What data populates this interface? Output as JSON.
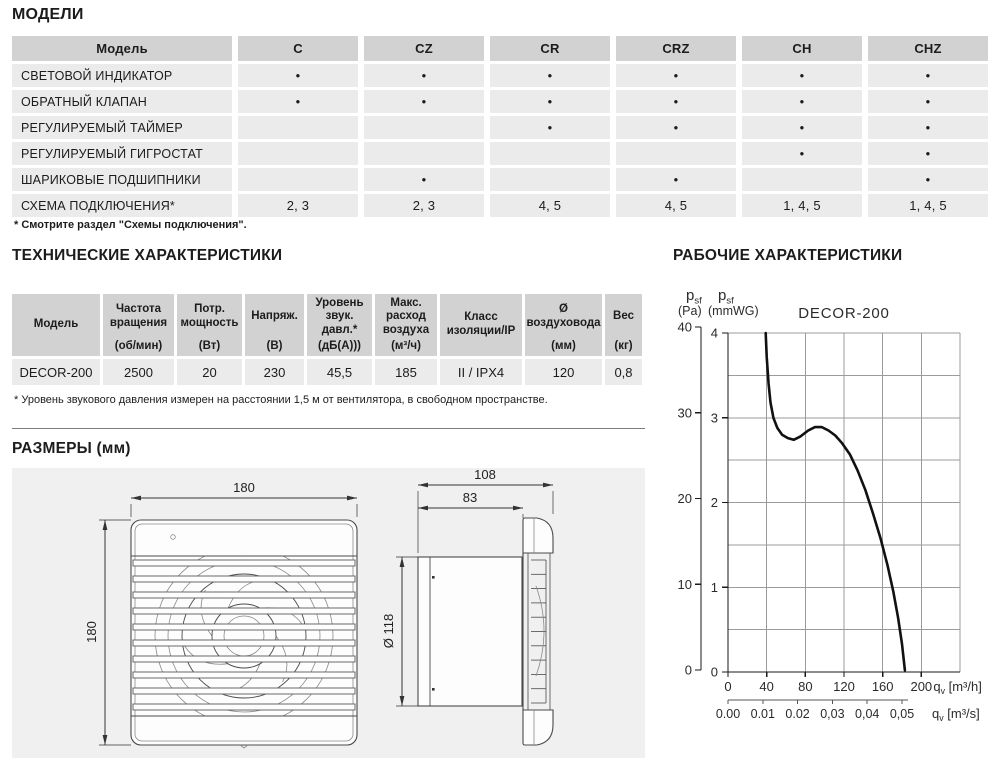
{
  "titles": {
    "models": "МОДЕЛИ",
    "tech": "ТЕХНИЧЕСКИЕ ХАРАКТЕРИСТИКИ",
    "performance": "РАБОЧИЕ ХАРАКТЕРИСТИКИ",
    "dimensions": "РАЗМЕРЫ (мм)"
  },
  "models_table": {
    "header": [
      "Модель",
      "C",
      "CZ",
      "CR",
      "CRZ",
      "CH",
      "CHZ"
    ],
    "rows": [
      {
        "label": "СВЕТОВОЙ ИНДИКАТОР",
        "values": [
          "●",
          "●",
          "●",
          "●",
          "●",
          "●"
        ]
      },
      {
        "label": "ОБРАТНЫЙ КЛАПАН",
        "values": [
          "●",
          "●",
          "●",
          "●",
          "●",
          "●"
        ]
      },
      {
        "label": "РЕГУЛИРУЕМЫЙ ТАЙМЕР",
        "values": [
          "",
          "",
          "●",
          "●",
          "●",
          "●"
        ]
      },
      {
        "label": "РЕГУЛИРУЕМЫЙ ГИГРОСТАТ",
        "values": [
          "",
          "",
          "",
          "",
          "●",
          "●"
        ]
      },
      {
        "label": "ШАРИКОВЫЕ ПОДШИПНИКИ",
        "values": [
          "",
          "●",
          "",
          "●",
          "",
          "●"
        ]
      },
      {
        "label": "СХЕМА ПОДКЛЮЧЕНИЯ*",
        "values": [
          "2, 3",
          "2, 3",
          "4, 5",
          "4, 5",
          "1, 4, 5",
          "1, 4, 5"
        ]
      }
    ]
  },
  "models_footnote": "* Смотрите раздел \"Схемы подключения\".",
  "tech_table": {
    "headers": [
      {
        "top": "Модель",
        "unit": ""
      },
      {
        "top": "Частота вращения",
        "unit": "(об/мин)"
      },
      {
        "top": "Потр. мощность",
        "unit": "(Вт)"
      },
      {
        "top": "Напряж.",
        "unit": "(В)"
      },
      {
        "top": "Уровень звук. давл.*",
        "unit": "(дБ(А)))"
      },
      {
        "top": "Макс. расход воздуха",
        "unit": "(м³/ч)"
      },
      {
        "top": "Класс изоляции/IP",
        "unit": ""
      },
      {
        "top": "Ø воздуховода",
        "unit": "(мм)"
      },
      {
        "top": "Вес",
        "unit": "(кг)"
      }
    ],
    "row": [
      "DECOR-200",
      "2500",
      "20",
      "230",
      "45,5",
      "185",
      "II / IPX4",
      "120",
      "0,8"
    ]
  },
  "tech_footnote": "* Уровень звукового давления измерен на расстоянии 1,5 м от вентилятора, в свободном пространстве.",
  "dimensions": {
    "front_width": "180",
    "front_height": "180",
    "side_overall": "108",
    "side_body": "83",
    "side_diameter": "Ø 118"
  },
  "chart_data": {
    "type": "line",
    "title": "DECOR-200",
    "x_axis": {
      "sym": "q",
      "sub": "v",
      "unit": "[m³/h]",
      "ticks": [
        0,
        40,
        80,
        120,
        160,
        200
      ],
      "max": 240,
      "grid_step": 40
    },
    "x_axis_secondary": {
      "sym": "q",
      "sub": "v",
      "unit": "[m³/s]",
      "tick_labels": [
        "0.00",
        "0.01",
        "0.02",
        "0,03",
        "0,04",
        "0,05"
      ],
      "tick_positions_m3h": [
        0,
        36,
        72,
        108,
        144,
        180
      ]
    },
    "y_axis_pa": {
      "sym": "p",
      "sub": "sf",
      "unit": "(Pa)",
      "ticks": [
        40,
        30,
        20,
        10,
        0
      ],
      "max": 40
    },
    "y_axis_mmwg": {
      "sym": "p",
      "sub": "sf",
      "unit": "(mmWG)",
      "ticks": [
        4,
        3,
        2,
        1,
        0
      ],
      "max": 4,
      "grid_step": 0.5
    },
    "series": [
      {
        "name": "DECOR-200",
        "points_m3h_mmwg": [
          [
            39,
            4.0
          ],
          [
            40,
            3.72
          ],
          [
            42,
            3.4
          ],
          [
            44,
            3.18
          ],
          [
            47,
            3.0
          ],
          [
            51,
            2.88
          ],
          [
            56,
            2.8
          ],
          [
            62,
            2.76
          ],
          [
            68,
            2.74
          ],
          [
            75,
            2.78
          ],
          [
            83,
            2.85
          ],
          [
            90,
            2.89
          ],
          [
            97,
            2.89
          ],
          [
            104,
            2.85
          ],
          [
            111,
            2.79
          ],
          [
            118,
            2.7
          ],
          [
            126,
            2.57
          ],
          [
            134,
            2.38
          ],
          [
            142,
            2.15
          ],
          [
            150,
            1.87
          ],
          [
            158,
            1.57
          ],
          [
            165,
            1.26
          ],
          [
            171,
            0.95
          ],
          [
            176,
            0.64
          ],
          [
            180,
            0.33
          ],
          [
            183,
            0.02
          ]
        ]
      }
    ]
  }
}
